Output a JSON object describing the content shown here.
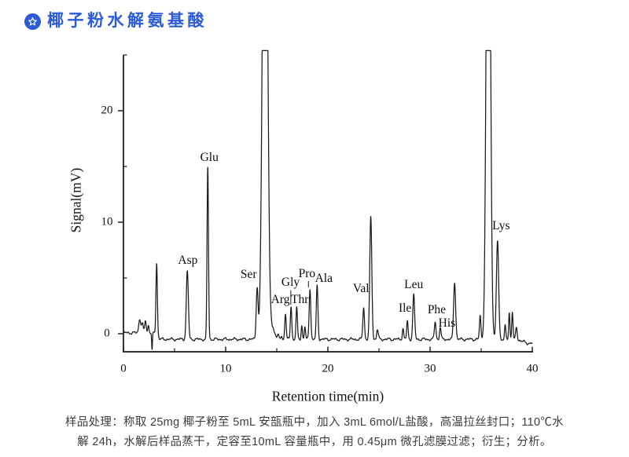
{
  "header": {
    "title": "椰子粉水解氨基酸",
    "icon": "star-badge-icon",
    "title_color": "#2b5bd7"
  },
  "chart_data": {
    "type": "line",
    "title": "",
    "xlabel": "Retention time(min)",
    "ylabel": "Signal(mV)",
    "xlim": [
      0,
      40
    ],
    "ylim": [
      -1.6,
      25
    ],
    "x_ticks": [
      0,
      10,
      20,
      30,
      40
    ],
    "x_minor_ticks": [
      5,
      15,
      25,
      35
    ],
    "y_ticks": [
      0,
      10,
      20
    ],
    "y_minor_ticks": [
      5,
      15,
      25
    ],
    "grid": false,
    "legend": "none",
    "trace_color": "#1b1b1b",
    "baseline_mv": -0.5,
    "peaks": [
      {
        "name": "",
        "t": 1.6,
        "mv": 1.35,
        "w": 0.1
      },
      {
        "name": "",
        "t": 1.85,
        "mv": 0.9,
        "w": 0.07
      },
      {
        "name": "",
        "t": 2.15,
        "mv": 1.15,
        "w": 0.08
      },
      {
        "name": "",
        "t": 2.45,
        "mv": 0.8,
        "w": 0.06
      },
      {
        "name": "",
        "t": 2.8,
        "mv": -1.55,
        "w": 0.04
      },
      {
        "name": "",
        "t": 3.25,
        "mv": 6.3,
        "w": 0.07
      },
      {
        "name": "Asp",
        "t": 6.25,
        "mv": 5.6,
        "w": 0.1,
        "label": [
          6.3,
          6.55
        ]
      },
      {
        "name": "Glu",
        "t": 8.25,
        "mv": 14.9,
        "w": 0.07,
        "label": [
          8.4,
          15.75
        ]
      },
      {
        "name": "Ser",
        "t": 13.08,
        "mv": 4.15,
        "w": 0.09,
        "label": [
          12.25,
          5.25
        ]
      },
      {
        "name": "",
        "t": 13.85,
        "mv": 60,
        "w": 0.22,
        "offscale": true,
        "note": "clipped at top of plot"
      },
      {
        "name": "",
        "t": 14.6,
        "mv": 0.4,
        "w": 0.25
      },
      {
        "name": "",
        "t": 15.15,
        "mv": -0.2,
        "w": 0.06
      },
      {
        "name": "",
        "t": 15.45,
        "mv": -0.25,
        "w": 0.06
      },
      {
        "name": "Arg",
        "t": 15.85,
        "mv": 1.85,
        "w": 0.07,
        "label": [
          15.35,
          3.05
        ]
      },
      {
        "name": "Gly",
        "t": 16.4,
        "mv": 2.45,
        "w": 0.07,
        "label": [
          16.35,
          4.55
        ],
        "leader": true
      },
      {
        "name": "Thr",
        "t": 16.95,
        "mv": 2.3,
        "w": 0.07,
        "label": [
          17.25,
          3.05
        ]
      },
      {
        "name": "",
        "t": 17.45,
        "mv": 0.75,
        "w": 0.06
      },
      {
        "name": "",
        "t": 17.75,
        "mv": 0.65,
        "w": 0.06
      },
      {
        "name": "Pro",
        "t": 18.25,
        "mv": 4.0,
        "w": 0.08,
        "label": [
          17.95,
          5.35
        ],
        "leader": true
      },
      {
        "name": "Ala",
        "t": 18.95,
        "mv": 4.3,
        "w": 0.08,
        "label": [
          19.6,
          4.9
        ]
      },
      {
        "name": "Val",
        "t": 23.5,
        "mv": 2.35,
        "w": 0.08,
        "label": [
          23.25,
          4.0
        ]
      },
      {
        "name": "",
        "t": 24.2,
        "mv": 10.4,
        "w": 0.1
      },
      {
        "name": "",
        "t": 24.85,
        "mv": 0.35,
        "w": 0.08
      },
      {
        "name": "",
        "t": 27.35,
        "mv": 0.45,
        "w": 0.07
      },
      {
        "name": "Ile",
        "t": 27.78,
        "mv": 1.1,
        "w": 0.07,
        "label": [
          27.55,
          2.25
        ]
      },
      {
        "name": "Leu",
        "t": 28.4,
        "mv": 3.45,
        "w": 0.09,
        "label": [
          28.4,
          4.4
        ]
      },
      {
        "name": "Phe",
        "t": 30.5,
        "mv": 1.05,
        "w": 0.08,
        "label": [
          30.65,
          2.1
        ]
      },
      {
        "name": "His",
        "t": 31.0,
        "mv": 0.6,
        "w": 0.07,
        "label": [
          31.65,
          0.95
        ]
      },
      {
        "name": "",
        "t": 32.4,
        "mv": 4.6,
        "w": 0.1
      },
      {
        "name": "",
        "t": 34.9,
        "mv": 1.6,
        "w": 0.07
      },
      {
        "name": "",
        "t": 35.7,
        "mv": 60,
        "w": 0.18,
        "offscale": true,
        "note": "clipped at top of plot"
      },
      {
        "name": "Lys",
        "t": 36.6,
        "mv": 8.3,
        "w": 0.11,
        "label": [
          36.95,
          9.65
        ]
      },
      {
        "name": "",
        "t": 37.35,
        "mv": 0.7,
        "w": 0.06
      },
      {
        "name": "",
        "t": 37.75,
        "mv": 1.9,
        "w": 0.06
      },
      {
        "name": "",
        "t": 38.05,
        "mv": 2.0,
        "w": 0.06
      },
      {
        "name": "",
        "t": 38.45,
        "mv": 0.6,
        "w": 0.07
      }
    ]
  },
  "caption": {
    "line1": "样品处理：称取 25mg 椰子粉至 5mL 安瓿瓶中，加入 3mL 6mol/L盐酸，高温拉丝封口；110℃水",
    "line2": "解 24h，水解后样品蒸干，定容至10mL 容量瓶中，用 0.45μm 微孔滤膜过滤；衍生；分析。"
  }
}
